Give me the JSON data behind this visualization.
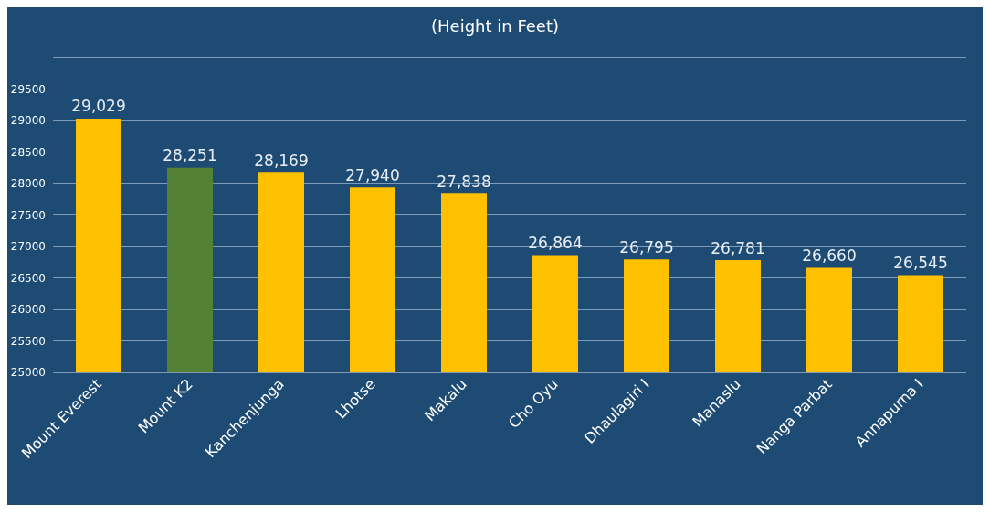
{
  "chart_data": {
    "type": "bar",
    "title": "(Height in Feet)",
    "categories": [
      "Mount Everest",
      "Mount K2",
      "Kanchenjunga",
      "Lhotse",
      "Makalu",
      "Cho Oyu",
      "Dhaulagiri I",
      "Manaslu",
      "Nanga Parbat",
      "Annapurna I"
    ],
    "values": [
      29029,
      28251,
      28169,
      27940,
      27838,
      26864,
      26795,
      26781,
      26660,
      26545
    ],
    "colors": [
      "#ffc000",
      "#548235",
      "#ffc000",
      "#ffc000",
      "#ffc000",
      "#ffc000",
      "#ffc000",
      "#ffc000",
      "#ffc000",
      "#ffc000"
    ],
    "value_labels": [
      "29,029",
      "28,251",
      "28,169",
      "27,940",
      "27,838",
      "26,864",
      "26,795",
      "26,781",
      "26,660",
      "26,545"
    ],
    "ylim": [
      25000,
      30000
    ],
    "yticks": [
      25000,
      25500,
      26000,
      26500,
      27000,
      27500,
      28000,
      28500,
      29000,
      29500,
      {
        "value": 30000,
        "label": null
      }
    ],
    "grid": "y"
  }
}
